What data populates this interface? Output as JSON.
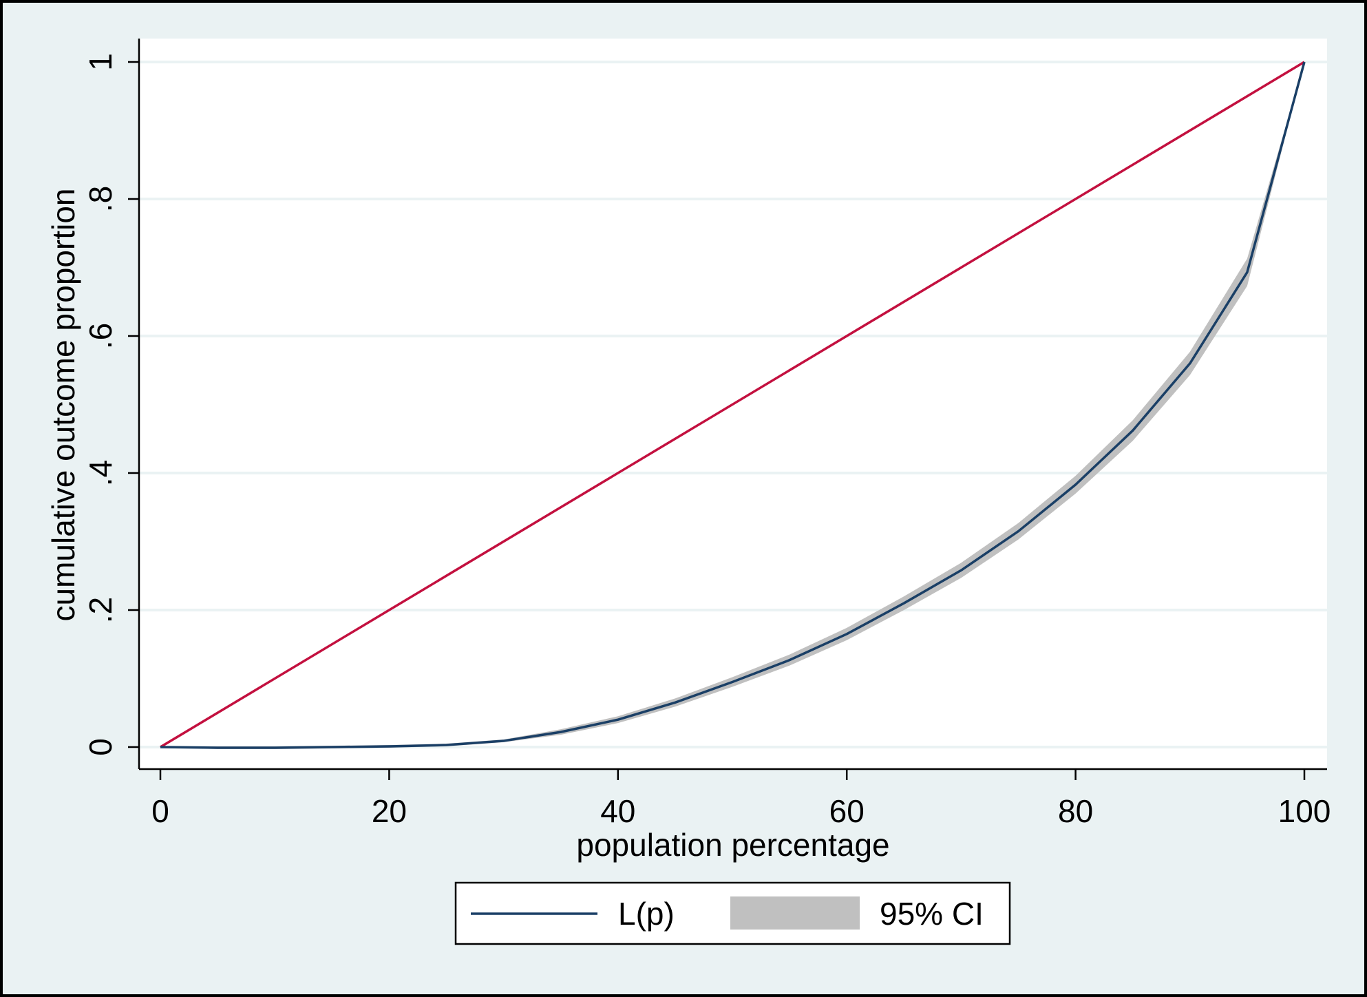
{
  "chart_data": {
    "type": "line",
    "title": "",
    "xlabel": "population percentage",
    "ylabel": "cumulative outcome proportion",
    "xlim": [
      0,
      100
    ],
    "ylim": [
      0,
      1
    ],
    "xticks": [
      0,
      20,
      40,
      60,
      80,
      100
    ],
    "xtick_labels": [
      "0",
      "20",
      "40",
      "60",
      "80",
      "100"
    ],
    "yticks": [
      0,
      0.2,
      0.4,
      0.6,
      0.8,
      1
    ],
    "ytick_labels": [
      "0",
      ".2",
      ".4",
      ".6",
      ".8",
      "1"
    ],
    "grid": "horizontal",
    "legend_position": "bottom",
    "series": [
      {
        "name": "L(p)",
        "color": "#1a3f66",
        "x": [
          0,
          5,
          10,
          15,
          20,
          25,
          30,
          35,
          40,
          45,
          50,
          55,
          60,
          65,
          70,
          75,
          80,
          85,
          90,
          95,
          100
        ],
        "y": [
          0,
          -0.001,
          -0.001,
          0,
          0.001,
          0.003,
          0.009,
          0.022,
          0.04,
          0.065,
          0.095,
          0.127,
          0.165,
          0.21,
          0.258,
          0.315,
          0.383,
          0.462,
          0.56,
          0.693,
          1.0
        ],
        "ci_low": [
          0,
          -0.003,
          -0.003,
          -0.002,
          -0.001,
          0.001,
          0.007,
          0.018,
          0.035,
          0.059,
          0.088,
          0.119,
          0.156,
          0.2,
          0.247,
          0.303,
          0.37,
          0.447,
          0.543,
          0.673,
          1.0
        ],
        "ci_high": [
          0,
          0.001,
          0.001,
          0.002,
          0.003,
          0.005,
          0.011,
          0.026,
          0.045,
          0.071,
          0.102,
          0.135,
          0.174,
          0.22,
          0.269,
          0.327,
          0.396,
          0.477,
          0.577,
          0.713,
          1.0
        ]
      },
      {
        "name": "",
        "color": "#c3103f",
        "x": [
          0,
          100
        ],
        "y": [
          0,
          1
        ]
      }
    ],
    "legend": {
      "line_label": "L(p)",
      "band_label": "95% CI"
    },
    "colors": {
      "outer_background": "#eaf2f3",
      "plot_background": "#ffffff",
      "gridline": "#eaf2f3",
      "ci_band": "#c0c0c0",
      "frame": "#000000"
    }
  }
}
